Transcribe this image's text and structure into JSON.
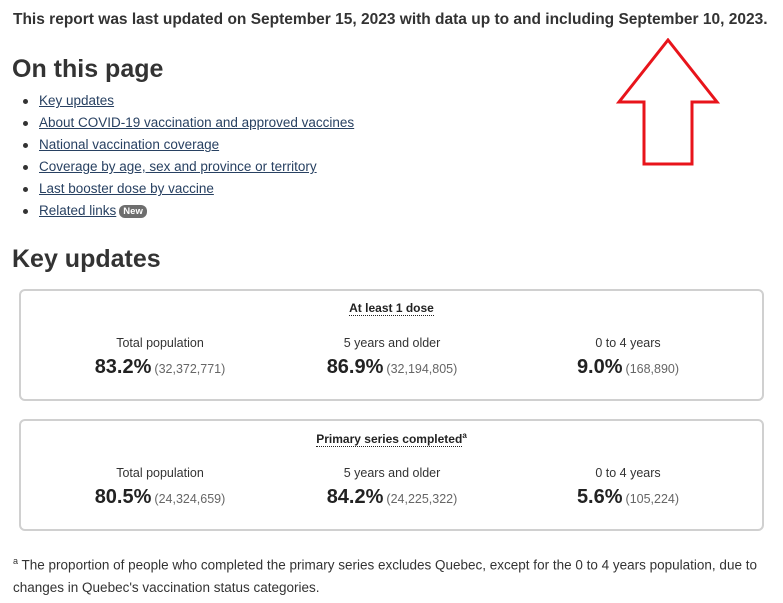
{
  "update_note": "This report was last updated on September 15, 2023 with data up to and including September 10, 2023.",
  "toc": {
    "title": "On this page",
    "items": [
      {
        "label": "Key updates"
      },
      {
        "label": "About COVID-19 vaccination and approved vaccines"
      },
      {
        "label": "National vaccination coverage"
      },
      {
        "label": "Coverage by age, sex and province or territory"
      },
      {
        "label": "Last booster dose by vaccine"
      },
      {
        "label": "Related links",
        "badge": "New"
      }
    ]
  },
  "key_updates": {
    "title": "Key updates",
    "panels": [
      {
        "heading": "At least 1 dose",
        "sup": "",
        "stats": [
          {
            "label": "Total population",
            "percent": "83.2%",
            "count": "(32,372,771)"
          },
          {
            "label": "5 years and older",
            "percent": "86.9%",
            "count": "(32,194,805)"
          },
          {
            "label": "0 to 4 years",
            "percent": "9.0%",
            "count": "(168,890)"
          }
        ]
      },
      {
        "heading": "Primary series completed",
        "sup": "a",
        "stats": [
          {
            "label": "Total population",
            "percent": "80.5%",
            "count": "(24,324,659)"
          },
          {
            "label": "5 years and older",
            "percent": "84.2%",
            "count": "(24,225,322)"
          },
          {
            "label": "0 to 4 years",
            "percent": "5.6%",
            "count": "(105,224)"
          }
        ]
      }
    ]
  },
  "footnote": {
    "marker": "a",
    "text": "The proportion of people who completed the primary series excludes Quebec, except for the 0 to 4 years population, due to changes in Quebec's vaccination status categories."
  },
  "annotation": {
    "color": "#e8141b",
    "icon": "up-arrow-icon"
  }
}
